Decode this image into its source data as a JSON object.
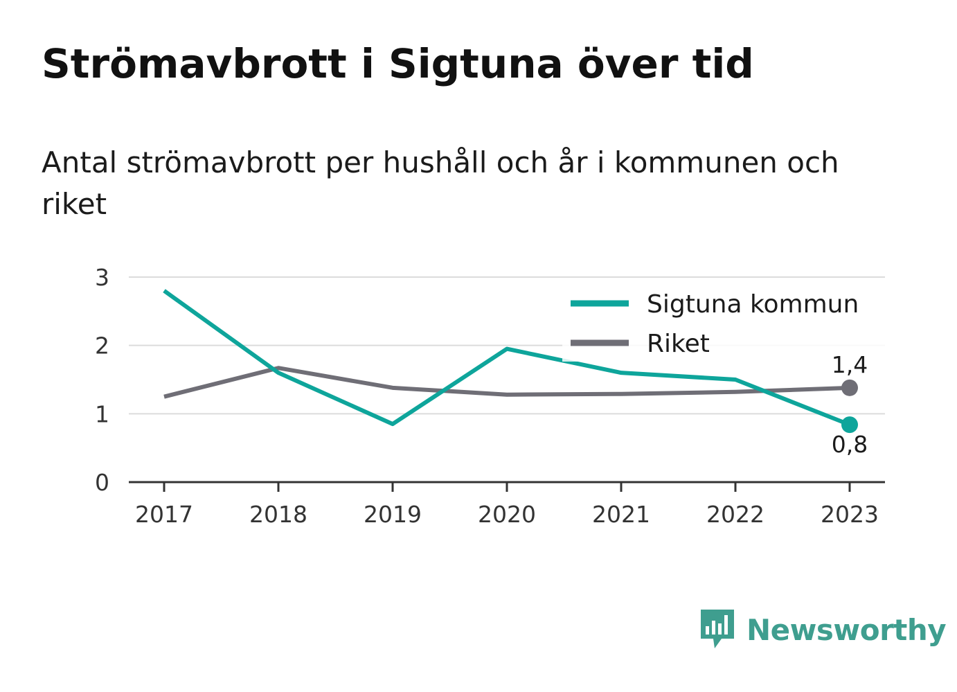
{
  "title": "Strömavbrott i Sigtuna över tid",
  "subtitle": "Antal strömavbrott per hushåll och år i kommunen och riket",
  "brand": {
    "name": "Newsworthy",
    "icon": "newsworthy-logo-icon",
    "color": "#3f9e8f"
  },
  "chart_data": {
    "type": "line",
    "x": [
      "2017",
      "2018",
      "2019",
      "2020",
      "2021",
      "2022",
      "2023"
    ],
    "ylim": [
      0,
      3
    ],
    "yticks": [
      "0",
      "1",
      "2",
      "3"
    ],
    "grid": true,
    "legend": "top-right",
    "series": [
      {
        "name": "Sigtuna kommun",
        "color": "#0ea59b",
        "values": [
          2.8,
          1.6,
          0.85,
          1.95,
          1.6,
          1.5,
          0.84
        ],
        "end_label": "0,8"
      },
      {
        "name": "Riket",
        "color": "#6f6e76",
        "values": [
          1.25,
          1.67,
          1.38,
          1.28,
          1.29,
          1.32,
          1.38
        ],
        "end_label": "1,4"
      }
    ]
  }
}
